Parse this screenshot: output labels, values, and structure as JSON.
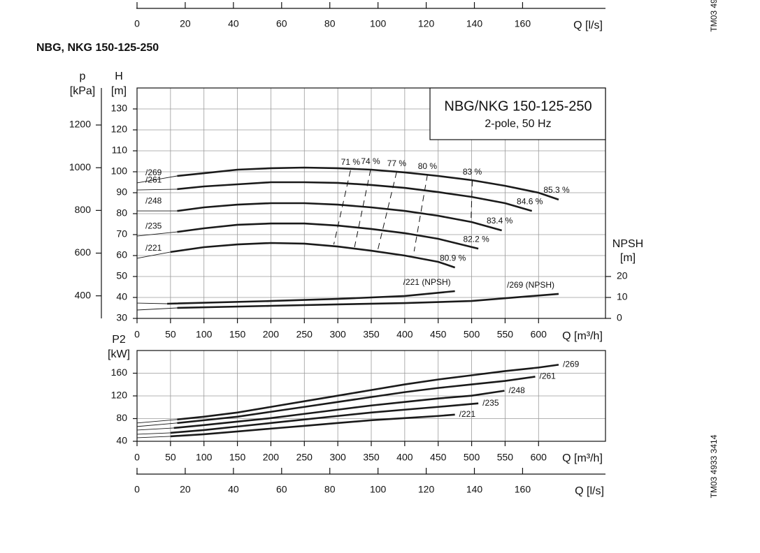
{
  "title": "NBG, NKG 150-125-250",
  "doc_code": "TM03 4933 3414",
  "doc_code_top": "TM03 49",
  "chart_data": [
    {
      "type": "axis",
      "xlabel": "Q [l/s]",
      "xlim": [
        0,
        194.4
      ],
      "xticks": [
        0,
        20,
        40,
        60,
        80,
        100,
        120,
        140,
        160
      ]
    },
    {
      "type": "line",
      "box_title": "NBG/NKG 150-125-250",
      "box_subtitle": "2-pole, 50 Hz",
      "xlabel": "Q [m³/h]",
      "ylabel": "H",
      "ylabel_unit": "[m]",
      "plabel": "p",
      "plabel_unit": "[kPa]",
      "y2label": "NPSH",
      "y2label_unit": "[m]",
      "xlim": [
        0,
        700
      ],
      "xticks": [
        0,
        50,
        100,
        150,
        200,
        250,
        300,
        350,
        400,
        450,
        500,
        550,
        600
      ],
      "ylim": [
        30,
        140
      ],
      "yticks": [
        30,
        40,
        50,
        60,
        70,
        80,
        90,
        100,
        110,
        120,
        130
      ],
      "plim": [
        294.3,
        1373.4
      ],
      "pticks": [
        400,
        600,
        800,
        1000,
        1200
      ],
      "y2lim": [
        0,
        110
      ],
      "y2ticks": [
        0,
        10,
        20
      ],
      "grid": true,
      "series": [
        {
          "name": "/269",
          "color": "#1a1a1a",
          "end_label": "85.3 %",
          "x": [
            0,
            60,
            100,
            150,
            200,
            250,
            300,
            350,
            400,
            450,
            500,
            550,
            600,
            630
          ],
          "values": [
            94.7,
            98,
            99.3,
            101,
            101.7,
            102,
            101.7,
            101,
            99.7,
            98,
            96,
            93.3,
            90,
            86.7
          ]
        },
        {
          "name": "/261",
          "color": "#1a1a1a",
          "end_label": "84.6 %",
          "x": [
            0,
            60,
            100,
            150,
            200,
            250,
            300,
            350,
            400,
            450,
            500,
            550,
            590
          ],
          "values": [
            91.3,
            91.7,
            93,
            94,
            95,
            95,
            94.7,
            93.7,
            92.3,
            90.3,
            88,
            85,
            81.3
          ]
        },
        {
          "name": "/248",
          "color": "#1a1a1a",
          "end_label": "83.4 %",
          "x": [
            0,
            60,
            100,
            150,
            200,
            250,
            300,
            350,
            400,
            450,
            500,
            545
          ],
          "values": [
            81.3,
            81.3,
            83,
            84.3,
            85,
            85,
            84.3,
            83,
            81.3,
            79,
            76,
            72
          ]
        },
        {
          "name": "/235",
          "color": "#1a1a1a",
          "end_label": "82.2 %",
          "x": [
            0,
            60,
            100,
            150,
            200,
            250,
            300,
            350,
            400,
            450,
            510
          ],
          "values": [
            69.3,
            71.3,
            73,
            74.7,
            75.3,
            75.3,
            74.3,
            72.7,
            70.7,
            68,
            63.3
          ]
        },
        {
          "name": "/221",
          "color": "#1a1a1a",
          "end_label": "80.9 %",
          "x": [
            0,
            50,
            100,
            150,
            200,
            250,
            300,
            350,
            400,
            450,
            475
          ],
          "values": [
            58.7,
            61.7,
            64,
            65.3,
            66,
            65.7,
            64.3,
            62.3,
            60,
            57,
            54.3
          ]
        },
        {
          "name": "/221 (NPSH)",
          "color": "#1a1a1a",
          "axis": "y2",
          "x": [
            0,
            45,
            200,
            300,
            400,
            475
          ],
          "values": [
            7.3,
            7,
            8.3,
            9.3,
            10.7,
            13
          ]
        },
        {
          "name": "/269 (NPSH)",
          "color": "#1a1a1a",
          "axis": "y2",
          "x": [
            0,
            60,
            200,
            300,
            400,
            500,
            630
          ],
          "values": [
            4,
            5,
            6,
            6.7,
            7.3,
            8.3,
            11.7
          ]
        }
      ],
      "efficiency_lines": [
        {
          "label": "71 %",
          "x": [
            319,
            294
          ],
          "values": [
            100.7,
            65.3
          ]
        },
        {
          "label": "74 %",
          "x": [
            349,
            325
          ],
          "values": [
            101,
            64
          ]
        },
        {
          "label": "77 %",
          "x": [
            388,
            360
          ],
          "values": [
            100,
            63
          ]
        },
        {
          "label": "80 %",
          "x": [
            434,
            414
          ],
          "values": [
            98.7,
            62
          ]
        },
        {
          "label": "83 %",
          "x": [
            501,
            499
          ],
          "values": [
            96,
            76
          ]
        }
      ]
    },
    {
      "type": "line",
      "ylabel": "P2",
      "ylabel_unit": "[kW]",
      "xlabel": "Q [m³/h]",
      "xlim": [
        0,
        700
      ],
      "xticks": [
        0,
        50,
        100,
        150,
        200,
        250,
        300,
        350,
        400,
        450,
        500,
        550,
        600
      ],
      "ylim": [
        40,
        200
      ],
      "yticks": [
        40,
        80,
        120,
        160
      ],
      "grid": true,
      "series": [
        {
          "name": "/269",
          "color": "#1a1a1a",
          "x": [
            0,
            60,
            100,
            150,
            200,
            250,
            300,
            350,
            400,
            450,
            500,
            550,
            600,
            630
          ],
          "values": [
            72.2,
            78.4,
            83.3,
            90.7,
            100.6,
            110.5,
            120.4,
            130.3,
            140.2,
            148.9,
            156.3,
            163.8,
            170,
            174.9
          ]
        },
        {
          "name": "/261",
          "color": "#1a1a1a",
          "x": [
            0,
            60,
            100,
            150,
            200,
            250,
            300,
            350,
            400,
            450,
            500,
            550,
            595
          ],
          "values": [
            66,
            72.2,
            77.1,
            83.3,
            92,
            100.6,
            109.3,
            118,
            126.6,
            134,
            140.2,
            146.4,
            153.9
          ]
        },
        {
          "name": "/248",
          "color": "#1a1a1a",
          "x": [
            0,
            55,
            100,
            150,
            200,
            250,
            300,
            350,
            400,
            450,
            500,
            549
          ],
          "values": [
            59.8,
            63.5,
            68.5,
            74.7,
            80.8,
            88.3,
            95.7,
            103.1,
            109.3,
            115.5,
            120.4,
            129.1
          ]
        },
        {
          "name": "/235",
          "color": "#1a1a1a",
          "x": [
            0,
            50,
            100,
            150,
            200,
            250,
            300,
            350,
            400,
            450,
            510
          ],
          "values": [
            52.4,
            54.9,
            59.8,
            66,
            72.2,
            78.4,
            84.6,
            90.7,
            95.7,
            100.6,
            106.8
          ]
        },
        {
          "name": "/221",
          "color": "#1a1a1a",
          "x": [
            0,
            50,
            100,
            150,
            200,
            250,
            300,
            350,
            400,
            450,
            475
          ],
          "values": [
            46.2,
            48.7,
            52.4,
            57.3,
            62.3,
            67.2,
            72.2,
            77.1,
            80.8,
            84.6,
            87
          ]
        }
      ]
    },
    {
      "type": "axis",
      "xlabel": "Q [l/s]",
      "xlim": [
        0,
        194.4
      ],
      "xticks": [
        0,
        20,
        40,
        60,
        80,
        100,
        120,
        140,
        160
      ]
    }
  ]
}
